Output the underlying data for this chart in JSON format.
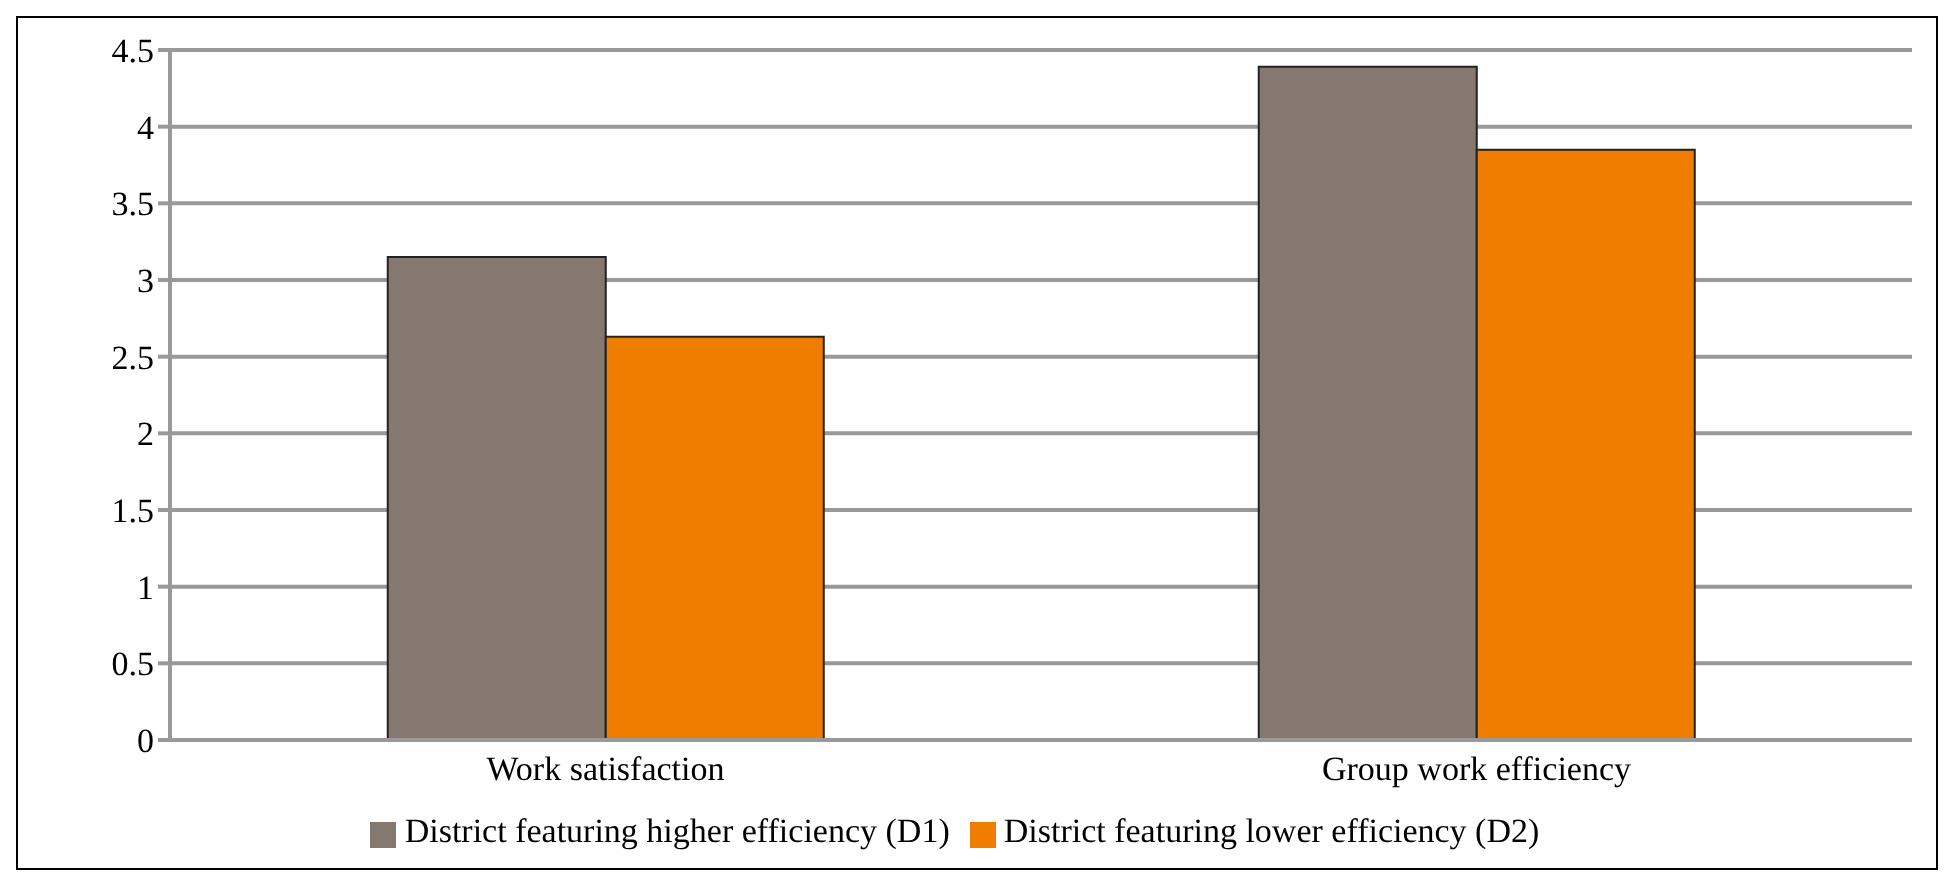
{
  "chart_data": {
    "type": "bar",
    "categories": [
      "Work satisfaction",
      "Group work efficiency"
    ],
    "series": [
      {
        "name": "District featuring higher efficiency (D1)",
        "color": "#857870",
        "values": [
          3.15,
          4.39
        ]
      },
      {
        "name": "District featuring lower efficiency (D2)",
        "color": "#ef7d00",
        "values": [
          2.63,
          3.85
        ]
      }
    ],
    "ylim": [
      0,
      4.5
    ],
    "yticks": [
      0,
      0.5,
      1,
      1.5,
      2,
      2.5,
      3,
      3.5,
      4,
      4.5
    ],
    "grid": "y",
    "legend": "bottom"
  }
}
